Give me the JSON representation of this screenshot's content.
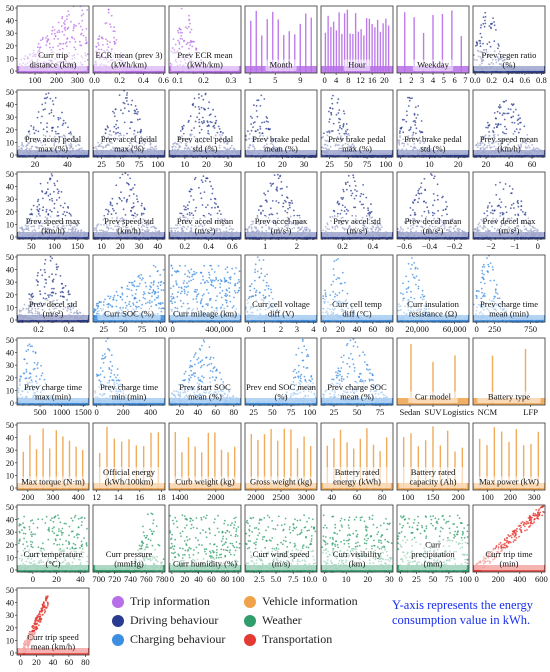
{
  "colors": {
    "trip": "#b76ee8",
    "driving": "#2a3b8f",
    "charging": "#3d8ee0",
    "vehicle": "#f0a24a",
    "weather": "#2f9e6a",
    "transport": "#e53935"
  },
  "legend": {
    "items": [
      {
        "key": "trip",
        "label": "Trip information"
      },
      {
        "key": "driving",
        "label": "Driving behaviour"
      },
      {
        "key": "charging",
        "label": "Charging behaviour"
      },
      {
        "key": "vehicle",
        "label": "Vehicle information"
      },
      {
        "key": "weather",
        "label": "Weather"
      },
      {
        "key": "transport",
        "label": "Transportation"
      }
    ]
  },
  "note": "Y-axis represents the energy consumption value in kWh.",
  "chart_data": [
    {
      "type": "scatter",
      "category": "trip",
      "shape": "rise",
      "label": [
        "Curr trip",
        "distance (km)"
      ],
      "xticks": [
        "100",
        "200",
        "300"
      ],
      "xtick_pos": [
        0.25,
        0.55,
        0.84
      ],
      "yticks": [
        "0",
        "10",
        "20",
        "30",
        "40",
        "50"
      ]
    },
    {
      "type": "scatter",
      "category": "trip",
      "shape": "leftpeak",
      "label": [
        "ECR mean (prev 3)",
        "(kWh/km)"
      ],
      "xticks": [
        "0.0",
        "0.2",
        "0.4",
        "0.6"
      ],
      "xtick_pos": [
        0.02,
        0.37,
        0.7,
        0.98
      ],
      "yticks": []
    },
    {
      "type": "scatter",
      "category": "trip",
      "shape": "leftpeak",
      "label": [
        "Prev ECR mean",
        "(kWh/km)"
      ],
      "xticks": [
        "0.1",
        "0.2",
        "0.3"
      ],
      "xtick_pos": [
        0.12,
        0.48,
        0.86
      ],
      "yticks": []
    },
    {
      "type": "scatter",
      "category": "trip",
      "shape": "discrete",
      "n": 12,
      "label": [
        "Month"
      ],
      "xticks": [
        "1",
        "5",
        "9"
      ],
      "xtick_pos": [
        0.07,
        0.42,
        0.77
      ],
      "yticks": []
    },
    {
      "type": "scatter",
      "category": "trip",
      "shape": "discrete",
      "n": 24,
      "label": [
        "Hour"
      ],
      "xticks": [
        "0",
        "4",
        "8",
        "12",
        "16",
        "20"
      ],
      "xtick_pos": [
        0.05,
        0.21,
        0.38,
        0.55,
        0.71,
        0.88
      ],
      "yticks": []
    },
    {
      "type": "scatter",
      "category": "trip",
      "shape": "discrete",
      "n": 7,
      "label": [
        "Weekday"
      ],
      "xticks": [
        "1",
        "2",
        "3",
        "4",
        "5",
        "6",
        "7"
      ],
      "xtick_pos": [
        0.05,
        0.2,
        0.35,
        0.5,
        0.65,
        0.8,
        0.95
      ],
      "yticks": []
    },
    {
      "type": "scatter",
      "category": "driving",
      "shape": "leftpeak",
      "label": [
        "Prev regen ratio",
        "(%)"
      ],
      "xticks": [
        "0.0",
        "0.2",
        "0.4",
        "0.6",
        "0.8"
      ],
      "xtick_pos": [
        0.03,
        0.26,
        0.49,
        0.72,
        0.95
      ],
      "yticks": []
    },
    {
      "type": "scatter",
      "category": "driving",
      "shape": "dome",
      "label": [
        "Prev accel pedal",
        "max (%)"
      ],
      "xticks": [
        "20",
        "40"
      ],
      "xtick_pos": [
        0.25,
        0.7
      ],
      "yticks": [
        "0",
        "10",
        "20",
        "30",
        "40",
        "50"
      ]
    },
    {
      "type": "scatter",
      "category": "driving",
      "shape": "dome",
      "label": [
        "Prev accel pedal",
        "max (%)"
      ],
      "xticks": [
        "25",
        "50",
        "75",
        "100"
      ],
      "xtick_pos": [
        0.12,
        0.38,
        0.64,
        0.9
      ],
      "yticks": []
    },
    {
      "type": "scatter",
      "category": "driving",
      "shape": "dome",
      "label": [
        "Prev accel pedal",
        "std (%)"
      ],
      "xticks": [
        "10",
        "20",
        "30"
      ],
      "xtick_pos": [
        0.22,
        0.52,
        0.82
      ],
      "yticks": []
    },
    {
      "type": "scatter",
      "category": "driving",
      "shape": "leftpeak",
      "label": [
        "Prev brake pedal",
        "mean (%)"
      ],
      "xticks": [
        "10",
        "20",
        "30"
      ],
      "xtick_pos": [
        0.22,
        0.52,
        0.82
      ],
      "yticks": []
    },
    {
      "type": "scatter",
      "category": "driving",
      "shape": "leftpeak",
      "label": [
        "Prev brake pedal",
        "max (%)"
      ],
      "xticks": [
        "25",
        "50",
        "75",
        "100"
      ],
      "xtick_pos": [
        0.12,
        0.38,
        0.64,
        0.9
      ],
      "yticks": []
    },
    {
      "type": "scatter",
      "category": "driving",
      "shape": "leftpeak",
      "label": [
        "Prev brake pedal",
        "std (%)"
      ],
      "xticks": [
        "0",
        "10",
        "20"
      ],
      "xtick_pos": [
        0.05,
        0.45,
        0.85
      ],
      "yticks": []
    },
    {
      "type": "scatter",
      "category": "driving",
      "shape": "dome",
      "label": [
        "Prev speed mean",
        "(km/h)"
      ],
      "xticks": [
        "20",
        "40",
        "60"
      ],
      "xtick_pos": [
        0.18,
        0.5,
        0.82
      ],
      "yticks": []
    },
    {
      "type": "scatter",
      "category": "driving",
      "shape": "dome",
      "label": [
        "Prev speed max",
        "(km/h)"
      ],
      "xticks": [
        "50",
        "100",
        "150"
      ],
      "xtick_pos": [
        0.2,
        0.52,
        0.84
      ],
      "yticks": [
        "0",
        "10",
        "20",
        "30",
        "40",
        "50"
      ]
    },
    {
      "type": "scatter",
      "category": "driving",
      "shape": "dome",
      "label": [
        "Prev speed std",
        "(km/h)"
      ],
      "xticks": [
        "10",
        "20",
        "30",
        "40"
      ],
      "xtick_pos": [
        0.12,
        0.38,
        0.64,
        0.9
      ],
      "yticks": []
    },
    {
      "type": "scatter",
      "category": "driving",
      "shape": "dome",
      "label": [
        "Prev accel mean",
        "(m/s²)"
      ],
      "xticks": [
        "0.2",
        "0.4",
        "0.6"
      ],
      "xtick_pos": [
        0.22,
        0.55,
        0.88
      ],
      "yticks": []
    },
    {
      "type": "scatter",
      "category": "driving",
      "shape": "dome",
      "label": [
        "Prev accel max",
        "(m/s²)"
      ],
      "xticks": [
        "1",
        "2"
      ],
      "xtick_pos": [
        0.28,
        0.72
      ],
      "yticks": []
    },
    {
      "type": "scatter",
      "category": "driving",
      "shape": "dome",
      "label": [
        "Prev accel std",
        "(m/s²)"
      ],
      "xticks": [
        "0.2",
        "0.4"
      ],
      "xtick_pos": [
        0.3,
        0.72
      ],
      "yticks": []
    },
    {
      "type": "scatter",
      "category": "driving",
      "shape": "dome",
      "label": [
        "Prev decel mean",
        "(m/s²)"
      ],
      "xticks": [
        "−0.6",
        "−0.4",
        "−0.2"
      ],
      "xtick_pos": [
        0.1,
        0.45,
        0.8
      ],
      "yticks": []
    },
    {
      "type": "scatter",
      "category": "driving",
      "shape": "dome",
      "label": [
        "Prev decel max",
        "(m/s²)"
      ],
      "xticks": [
        "−2",
        "−1",
        "0"
      ],
      "xtick_pos": [
        0.25,
        0.58,
        0.9
      ],
      "yticks": []
    },
    {
      "type": "scatter",
      "category": "driving",
      "shape": "dome",
      "label": [
        "Prev decel std",
        "(m/s²)"
      ],
      "xticks": [
        "0.2",
        "0.4"
      ],
      "xtick_pos": [
        0.3,
        0.72
      ],
      "yticks": [
        "0",
        "10",
        "20",
        "30",
        "40",
        "50"
      ]
    },
    {
      "type": "scatter",
      "category": "charging",
      "shape": "wedge",
      "label": [
        "Curr SOC (%)"
      ],
      "xticks": [
        "25",
        "50",
        "75",
        "100"
      ],
      "xtick_pos": [
        0.15,
        0.42,
        0.68,
        0.94
      ],
      "yticks": []
    },
    {
      "type": "scatter",
      "category": "charging",
      "shape": "flat",
      "label": [
        "Curr mileage (km)"
      ],
      "xticks": [
        "0",
        "400,000"
      ],
      "xtick_pos": [
        0.05,
        0.7
      ],
      "yticks": []
    },
    {
      "type": "scatter",
      "category": "charging",
      "shape": "leftpeak",
      "label": [
        "Curr cell voltage",
        "diff (V)"
      ],
      "xticks": [
        "0",
        "1",
        "2",
        "3",
        "4"
      ],
      "xtick_pos": [
        0.05,
        0.27,
        0.5,
        0.72,
        0.95
      ],
      "yticks": []
    },
    {
      "type": "scatter",
      "category": "charging",
      "shape": "leftpeak",
      "label": [
        "Curr cell temp",
        "diff (°C)"
      ],
      "xticks": [
        "0",
        "20",
        "40",
        "60",
        "80"
      ],
      "xtick_pos": [
        0.05,
        0.27,
        0.5,
        0.72,
        0.95
      ],
      "yticks": []
    },
    {
      "type": "scatter",
      "category": "charging",
      "shape": "leftpeak",
      "label": [
        "Curr insulation",
        "resistance (Ω)"
      ],
      "xticks": [
        "20,000",
        "60,000"
      ],
      "xtick_pos": [
        0.28,
        0.8
      ],
      "yticks": []
    },
    {
      "type": "scatter",
      "category": "charging",
      "shape": "leftpeak",
      "label": [
        "Prev charge time",
        "mean (min)"
      ],
      "xticks": [
        "0",
        "250",
        "750"
      ],
      "xtick_pos": [
        0.05,
        0.3,
        0.8
      ],
      "yticks": []
    },
    {
      "type": "scatter",
      "category": "charging",
      "shape": "leftpeak",
      "label": [
        "Prev charge time",
        "max (min)"
      ],
      "xticks": [
        "500",
        "1000",
        "1500"
      ],
      "xtick_pos": [
        0.32,
        0.62,
        0.92
      ],
      "yticks": [
        "0",
        "10",
        "20",
        "30",
        "40",
        "50"
      ]
    },
    {
      "type": "scatter",
      "category": "charging",
      "shape": "leftpeak",
      "label": [
        "Prev charge time",
        "min (min)"
      ],
      "xticks": [
        "0",
        "200",
        "400"
      ],
      "xtick_pos": [
        0.05,
        0.42,
        0.8
      ],
      "yticks": []
    },
    {
      "type": "scatter",
      "category": "charging",
      "shape": "dome",
      "label": [
        "Prev start SOC",
        "mean (%)"
      ],
      "xticks": [
        "20",
        "40",
        "60",
        "80"
      ],
      "xtick_pos": [
        0.15,
        0.4,
        0.65,
        0.9
      ],
      "yticks": []
    },
    {
      "type": "scatter",
      "category": "charging",
      "shape": "rightpeak",
      "label": [
        "Prev end SOC mean",
        "(%)"
      ],
      "xticks": [
        "25",
        "50",
        "75",
        "100"
      ],
      "xtick_pos": [
        0.12,
        0.38,
        0.64,
        0.9
      ],
      "yticks": []
    },
    {
      "type": "scatter",
      "category": "charging",
      "shape": "dome",
      "label": [
        "Prev charge SOC",
        "mean (%)"
      ],
      "xticks": [
        "25",
        "50",
        "75"
      ],
      "xtick_pos": [
        0.18,
        0.5,
        0.82
      ],
      "yticks": []
    },
    {
      "type": "scatter",
      "category": "vehicle",
      "shape": "discrete",
      "n": 3,
      "label": [
        "Car model"
      ],
      "xticks": [
        "Sedan",
        "SUV",
        "Logistics"
      ],
      "xtick_pos": [
        0.18,
        0.5,
        0.85
      ],
      "yticks": []
    },
    {
      "type": "scatter",
      "category": "vehicle",
      "shape": "discrete",
      "n": 2,
      "label": [
        "Battery type"
      ],
      "xticks": [
        "NCM",
        "LFP"
      ],
      "xtick_pos": [
        0.2,
        0.8
      ],
      "yticks": []
    },
    {
      "type": "scatter",
      "category": "vehicle",
      "shape": "discrete",
      "n": 10,
      "label": [
        "Max torque (N·m)"
      ],
      "xticks": [
        "200",
        "300",
        "400"
      ],
      "xtick_pos": [
        0.15,
        0.5,
        0.85
      ],
      "yticks": [
        "0",
        "10",
        "20",
        "30",
        "40",
        "50"
      ]
    },
    {
      "type": "scatter",
      "category": "vehicle",
      "shape": "discrete",
      "n": 9,
      "label": [
        "Official energy",
        "(kWh/100km)"
      ],
      "xticks": [
        "12",
        "14",
        "16",
        "18"
      ],
      "xtick_pos": [
        0.05,
        0.35,
        0.65,
        0.95
      ],
      "yticks": []
    },
    {
      "type": "scatter",
      "category": "vehicle",
      "shape": "discrete",
      "n": 10,
      "label": [
        "Curb weight (kg)"
      ],
      "xticks": [
        "1400",
        "2000"
      ],
      "xtick_pos": [
        0.15,
        0.65
      ],
      "yticks": []
    },
    {
      "type": "scatter",
      "category": "vehicle",
      "shape": "discrete",
      "n": 10,
      "label": [
        "Gross weight (kg)"
      ],
      "xticks": [
        "2000",
        "2500",
        "3000"
      ],
      "xtick_pos": [
        0.15,
        0.5,
        0.85
      ],
      "yticks": []
    },
    {
      "type": "scatter",
      "category": "vehicle",
      "shape": "discrete",
      "n": 10,
      "label": [
        "Battery rated",
        "energy (kWh)"
      ],
      "xticks": [
        "40",
        "60",
        "80"
      ],
      "xtick_pos": [
        0.15,
        0.5,
        0.85
      ],
      "yticks": []
    },
    {
      "type": "scatter",
      "category": "vehicle",
      "shape": "discrete",
      "n": 9,
      "label": [
        "Battery rated",
        "capacity (Ah)"
      ],
      "xticks": [
        "100",
        "150",
        "200"
      ],
      "xtick_pos": [
        0.15,
        0.5,
        0.85
      ],
      "yticks": []
    },
    {
      "type": "scatter",
      "category": "vehicle",
      "shape": "discrete",
      "n": 9,
      "label": [
        "Max power (kW)"
      ],
      "xticks": [
        "100",
        "200",
        "300"
      ],
      "xtick_pos": [
        0.2,
        0.52,
        0.85
      ],
      "yticks": []
    },
    {
      "type": "scatter",
      "category": "weather",
      "shape": "flat",
      "label": [
        "Curr temperature",
        "(°C)"
      ],
      "xticks": [
        "0",
        "20",
        "40"
      ],
      "xtick_pos": [
        0.22,
        0.55,
        0.88
      ],
      "yticks": [
        "0",
        "10",
        "20",
        "30",
        "40",
        "50"
      ]
    },
    {
      "type": "scatter",
      "category": "weather",
      "shape": "rightpeak",
      "label": [
        "Curr pressure",
        "(mmHg)"
      ],
      "xticks": [
        "700",
        "720",
        "740",
        "760",
        "780"
      ],
      "xtick_pos": [
        0.08,
        0.3,
        0.52,
        0.74,
        0.96
      ],
      "yticks": []
    },
    {
      "type": "scatter",
      "category": "weather",
      "shape": "flat",
      "label": [
        "Curr humidity (%)"
      ],
      "xticks": [
        "0",
        "20",
        "40",
        "60",
        "80",
        "100"
      ],
      "xtick_pos": [
        0.04,
        0.22,
        0.41,
        0.59,
        0.78,
        0.96
      ],
      "yticks": []
    },
    {
      "type": "scatter",
      "category": "weather",
      "shape": "flat",
      "label": [
        "Curr wind speed",
        "(m/s)"
      ],
      "xticks": [
        "2.5",
        "5.0",
        "7.5",
        "10.0"
      ],
      "xtick_pos": [
        0.2,
        0.43,
        0.67,
        0.9
      ],
      "yticks": []
    },
    {
      "type": "scatter",
      "category": "weather",
      "shape": "flat",
      "label": [
        "Curr visibility",
        "(km)"
      ],
      "xticks": [
        "0",
        "10",
        "20",
        "30"
      ],
      "xtick_pos": [
        0.05,
        0.35,
        0.65,
        0.95
      ],
      "yticks": []
    },
    {
      "type": "scatter",
      "category": "weather",
      "shape": "flat",
      "label": [
        "Curr",
        "precipitation",
        "(mm)"
      ],
      "xticks": [
        "0",
        "25",
        "50",
        "75",
        "100"
      ],
      "xtick_pos": [
        0.05,
        0.27,
        0.5,
        0.72,
        0.95
      ],
      "yticks": []
    },
    {
      "type": "scatter",
      "category": "transport",
      "shape": "line",
      "label": [
        "Curr trip time",
        "(min)"
      ],
      "xticks": [
        "0",
        "200",
        "400",
        "600"
      ],
      "xtick_pos": [
        0.05,
        0.35,
        0.65,
        0.95
      ],
      "yticks": []
    },
    {
      "type": "scatter",
      "category": "transport",
      "shape": "linecluster",
      "label": [
        "Curr trip speed",
        "mean (km/h)"
      ],
      "xticks": [
        "0",
        "20",
        "40",
        "60",
        "80"
      ],
      "xtick_pos": [
        0.05,
        0.27,
        0.5,
        0.72,
        0.95
      ],
      "yticks": [
        "0",
        "10",
        "20",
        "30",
        "40",
        "50"
      ]
    }
  ]
}
